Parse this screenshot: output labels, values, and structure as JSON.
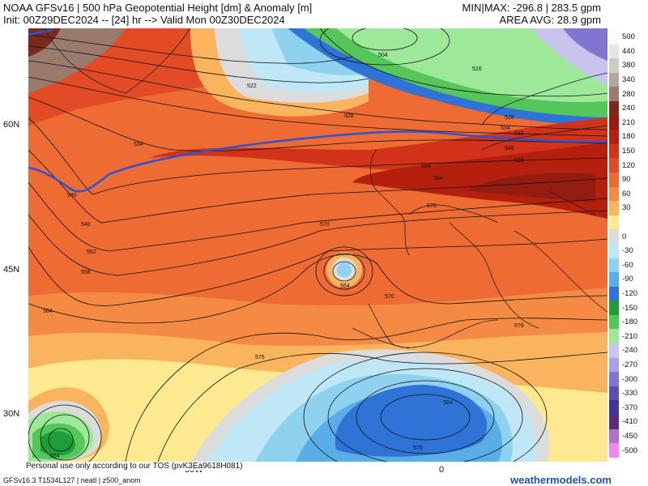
{
  "header": {
    "title_line1": "NOAA GFSv16 | 500 hPa Geopotential Height [dm] & Anomaly [m]",
    "title_line2": "Init: 00Z29DEC2024 -- [24] hr --> Valid Mon 00Z30DEC2024",
    "minmax": "MIN|MAX: -296.8 | 283.5 gpm",
    "area_avg": "AREA AVG: 28.9 gpm"
  },
  "axes": {
    "lat_labels": [
      "60N",
      "45N",
      "30N"
    ],
    "lon_labels": [
      "30W",
      "0"
    ]
  },
  "contour_labels": [
    "504",
    "516",
    "522",
    "528",
    "534",
    "540",
    "546",
    "552",
    "558",
    "564",
    "570",
    "576",
    "528",
    "534",
    "540",
    "546",
    "558",
    "564",
    "570",
    "564",
    "570",
    "564",
    "576",
    "564",
    "570",
    "564"
  ],
  "legend": [
    {
      "label": "500",
      "color": "#fafafa"
    },
    {
      "label": "440",
      "color": "#e6e6e6"
    },
    {
      "label": "380",
      "color": "#cccccc"
    },
    {
      "label": "340",
      "color": "#b3a7a0"
    },
    {
      "label": "280",
      "color": "#9a7b6c"
    },
    {
      "label": "240",
      "color": "#7a2a1c"
    },
    {
      "label": "210",
      "color": "#951c10"
    },
    {
      "label": "180",
      "color": "#b5200e"
    },
    {
      "label": "150",
      "color": "#d2321a"
    },
    {
      "label": "120",
      "color": "#e24b25"
    },
    {
      "label": "90",
      "color": "#ee6b33"
    },
    {
      "label": "60",
      "color": "#f58a44"
    },
    {
      "label": "30",
      "color": "#fbb45e"
    },
    {
      "label": "",
      "color": "#fde98f"
    },
    {
      "label": "0",
      "color": "#dcdcdc"
    },
    {
      "label": "-30",
      "color": "#bfe7f6"
    },
    {
      "label": "-60",
      "color": "#8fd2f0"
    },
    {
      "label": "-90",
      "color": "#5aaee8"
    },
    {
      "label": "-120",
      "color": "#2f73d6"
    },
    {
      "label": "-150",
      "color": "#1e9e3a"
    },
    {
      "label": "-180",
      "color": "#55c65a"
    },
    {
      "label": "-210",
      "color": "#9ee89a"
    },
    {
      "label": "-240",
      "color": "#c9c4ee"
    },
    {
      "label": "-270",
      "color": "#a9a1e3"
    },
    {
      "label": "-300",
      "color": "#8076cf"
    },
    {
      "label": "-330",
      "color": "#5b4fb6"
    },
    {
      "label": "-370",
      "color": "#3f3499"
    },
    {
      "label": "-410",
      "color": "#5a2c7a"
    },
    {
      "label": "-450",
      "color": "#b06fd0"
    },
    {
      "label": "-500",
      "color": "#ee88ee"
    }
  ],
  "footer": {
    "personal_use": "Personal use only according to our TOS (pvK3Ea9618H081)",
    "model_info": "GFSv16.3 T1534L127 | neatl | z500_anom",
    "site": "weathermodels.com"
  }
}
